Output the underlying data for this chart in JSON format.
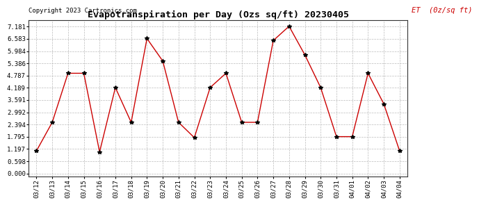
{
  "title": "Evapotranspiration per Day (Ozs sq/ft) 20230405",
  "copyright": "Copyright 2023 Cartronics.com",
  "legend_label": "ET  (0z/sq ft)",
  "dates": [
    "03/12",
    "03/13",
    "03/14",
    "03/15",
    "03/16",
    "03/17",
    "03/18",
    "03/19",
    "03/20",
    "03/21",
    "03/22",
    "03/23",
    "03/24",
    "03/25",
    "03/26",
    "03/27",
    "03/28",
    "03/29",
    "03/30",
    "03/31",
    "04/01",
    "04/02",
    "04/03",
    "04/04"
  ],
  "values": [
    1.1,
    2.5,
    4.9,
    4.9,
    1.05,
    4.2,
    2.5,
    6.6,
    5.5,
    2.5,
    1.75,
    4.2,
    4.9,
    2.5,
    2.5,
    6.5,
    7.2,
    5.8,
    4.2,
    1.8,
    1.8,
    4.9,
    3.4,
    1.1
  ],
  "line_color": "#cc0000",
  "marker_color": "#000000",
  "bg_color": "#ffffff",
  "grid_color": "#bbbbbb",
  "title_fontsize": 9.5,
  "copyright_fontsize": 6.5,
  "legend_fontsize": 7.5,
  "tick_fontsize": 6.5,
  "yticks": [
    0.0,
    0.598,
    1.197,
    1.795,
    2.394,
    2.992,
    3.591,
    4.189,
    4.787,
    5.386,
    5.984,
    6.583,
    7.181
  ],
  "ylim": [
    -0.15,
    7.5
  ]
}
